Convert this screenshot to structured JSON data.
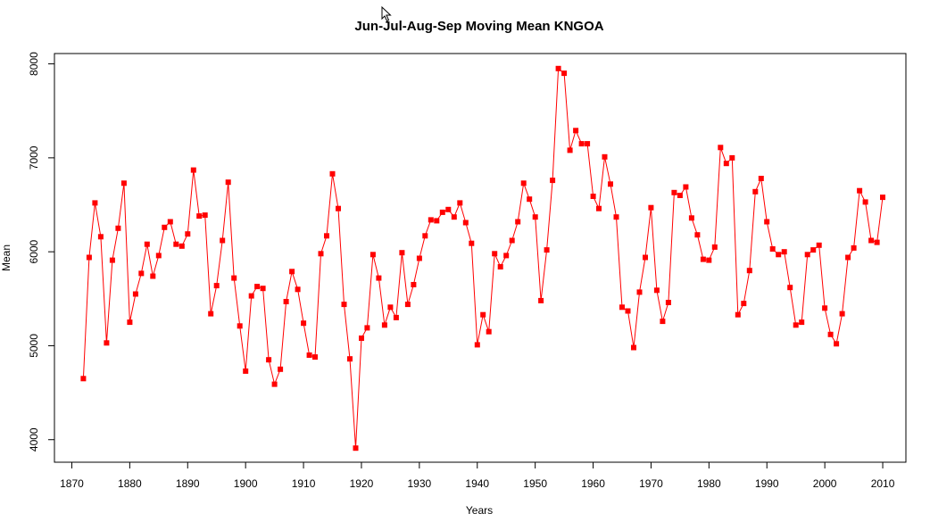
{
  "chart_data": {
    "type": "line",
    "title": "Jun-Jul-Aug-Sep Moving Mean KNGOA",
    "xlabel": "Years",
    "ylabel": "Mean",
    "xlim": [
      1867,
      2014
    ],
    "ylim": [
      3760,
      8110
    ],
    "x_ticks": [
      "1870",
      "1880",
      "1890",
      "1900",
      "1910",
      "1920",
      "1930",
      "1940",
      "1950",
      "1960",
      "1970",
      "1980",
      "1990",
      "2000",
      "2010"
    ],
    "y_ticks": [
      "4000",
      "5000",
      "6000",
      "7000",
      "8000"
    ],
    "series": [
      {
        "color": "#ff0000",
        "marker": "square",
        "x": [
          1872,
          1873,
          1874,
          1875,
          1876,
          1877,
          1878,
          1879,
          1880,
          1881,
          1882,
          1883,
          1884,
          1885,
          1886,
          1887,
          1888,
          1889,
          1890,
          1891,
          1892,
          1893,
          1894,
          1895,
          1896,
          1897,
          1898,
          1899,
          1900,
          1901,
          1902,
          1903,
          1904,
          1905,
          1906,
          1907,
          1908,
          1909,
          1910,
          1911,
          1912,
          1913,
          1914,
          1915,
          1916,
          1917,
          1918,
          1919,
          1920,
          1921,
          1922,
          1923,
          1924,
          1925,
          1926,
          1927,
          1928,
          1929,
          1930,
          1931,
          1932,
          1933,
          1934,
          1935,
          1936,
          1937,
          1938,
          1939,
          1940,
          1941,
          1942,
          1943,
          1944,
          1945,
          1946,
          1947,
          1948,
          1949,
          1950,
          1951,
          1952,
          1953,
          1954,
          1955,
          1956,
          1957,
          1958,
          1959,
          1960,
          1961,
          1962,
          1963,
          1964,
          1965,
          1966,
          1967,
          1968,
          1969,
          1970,
          1971,
          1972,
          1973,
          1974,
          1975,
          1976,
          1977,
          1978,
          1979,
          1980,
          1981,
          1982,
          1983,
          1984,
          1985,
          1986,
          1987,
          1988,
          1989,
          1990,
          1991,
          1992,
          1993,
          1994,
          1995,
          1996,
          1997,
          1998,
          1999,
          2000,
          2001,
          2002,
          2003,
          2004,
          2005,
          2006,
          2007,
          2008,
          2009,
          2010
        ],
        "y": [
          4650,
          5940,
          6520,
          6160,
          5030,
          5910,
          6250,
          6730,
          5250,
          5550,
          5770,
          6080,
          5740,
          5960,
          6260,
          6320,
          6080,
          6060,
          6190,
          6870,
          6380,
          6390,
          5340,
          5640,
          6120,
          6740,
          5720,
          5210,
          4730,
          5530,
          5630,
          5610,
          4850,
          4590,
          4750,
          5470,
          5790,
          5600,
          5240,
          4900,
          4880,
          5980,
          6170,
          6830,
          6460,
          5440,
          4860,
          3910,
          5080,
          5190,
          5970,
          5720,
          5220,
          5410,
          5300,
          5990,
          5440,
          5650,
          5930,
          6170,
          6340,
          6330,
          6420,
          6450,
          6370,
          6520,
          6310,
          6090,
          5010,
          5330,
          5150,
          5980,
          5840,
          5960,
          6120,
          6320,
          6730,
          6560,
          6370,
          5480,
          6020,
          6760,
          7950,
          7900,
          7080,
          7290,
          7150,
          7150,
          6590,
          6460,
          7010,
          6720,
          6370,
          5410,
          5370,
          4980,
          5570,
          5940,
          6470,
          5590,
          5260,
          5460,
          6630,
          6600,
          6690,
          6360,
          6180,
          5920,
          5910,
          6050,
          7110,
          6940,
          7000,
          5330,
          5450,
          5800,
          6640,
          6780,
          6320,
          6030,
          5970,
          6000,
          5620,
          5220,
          5250,
          5970,
          6020,
          6070,
          5400,
          5120,
          5020,
          5340,
          5940,
          6040,
          6650,
          6530,
          6120,
          6100,
          6580
        ]
      }
    ]
  }
}
